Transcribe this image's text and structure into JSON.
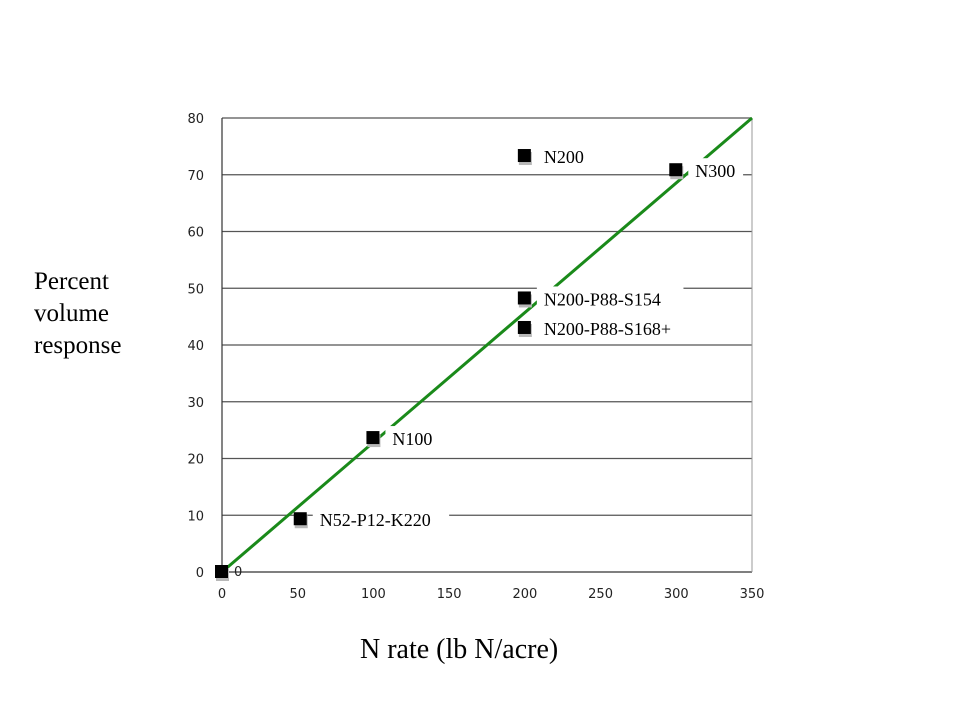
{
  "chart_data": {
    "type": "scatter",
    "title": "",
    "xlabel": "N rate (lb N/acre)",
    "ylabel_lines": [
      "Percent",
      "volume",
      "response"
    ],
    "xlim": [
      0,
      350
    ],
    "ylim": [
      0,
      80
    ],
    "x_ticks": [
      0,
      50,
      100,
      150,
      200,
      250,
      300,
      350
    ],
    "y_ticks": [
      0,
      10,
      20,
      30,
      40,
      50,
      60,
      70,
      80
    ],
    "grid": "horizontal",
    "points": [
      {
        "label": "0",
        "x": 0,
        "y": 0
      },
      {
        "label": "N52-P12-K220",
        "x": 52,
        "y": 9.3
      },
      {
        "label": "N100",
        "x": 100,
        "y": 23.6
      },
      {
        "label": "N200-P88-S168+",
        "x": 200,
        "y": 43
      },
      {
        "label": "N200-P88-S154",
        "x": 200,
        "y": 48.2
      },
      {
        "label": "N200",
        "x": 200,
        "y": 73.3
      },
      {
        "label": "N300",
        "x": 300,
        "y": 70.8
      }
    ],
    "trendline": {
      "x": [
        0,
        350
      ],
      "y": [
        0,
        80
      ],
      "color": "#1a8a1a"
    },
    "colors": {
      "marker": "#000000",
      "marker_shadow": "#b8b8b8",
      "grid": "#555555",
      "axis": "#333333"
    }
  }
}
